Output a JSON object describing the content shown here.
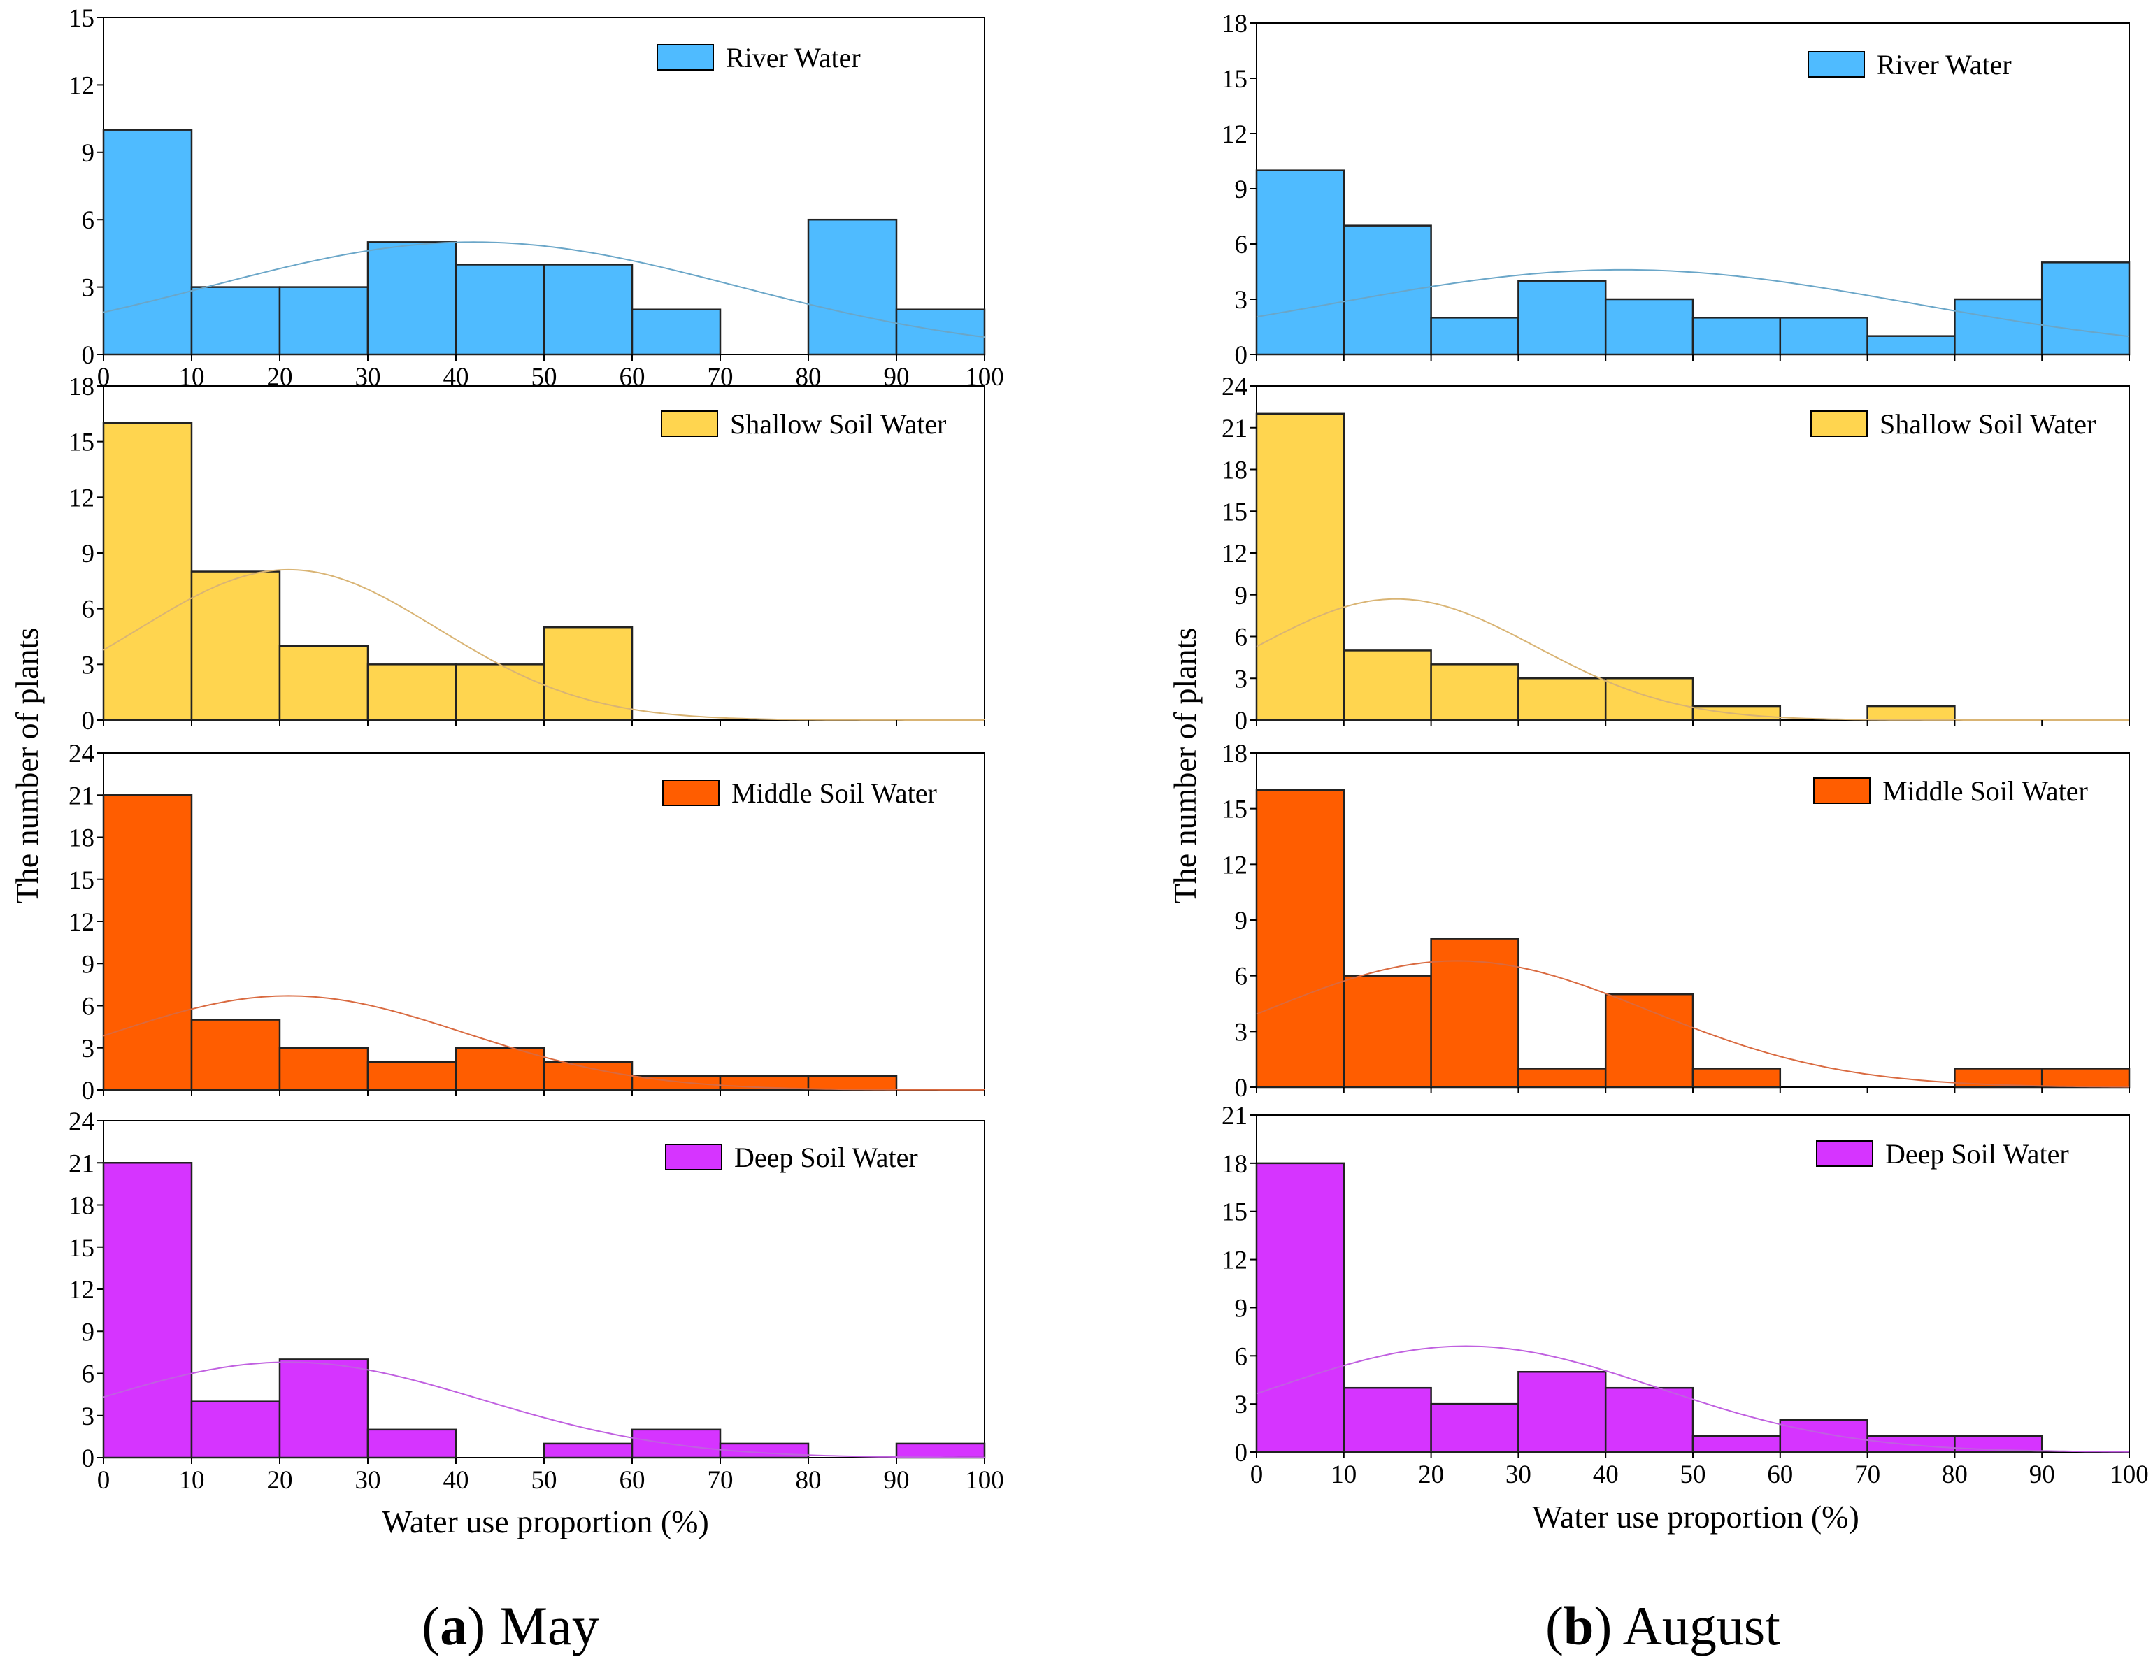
{
  "figure": {
    "captions": [
      {
        "open": "(",
        "letter": "a",
        "close": ")",
        "text": "May"
      },
      {
        "open": "(",
        "letter": "b",
        "close": ")",
        "text": "August"
      }
    ],
    "xlabel": "Water use proportion (%)",
    "ylabel": "The number of plants"
  },
  "colors": {
    "river": "#4FBBFF",
    "shallow": "#FFD54F",
    "middle": "#FF5D00",
    "deep": "#D634FF",
    "river_curve": "#6AA6C8",
    "shallow_curve": "#D9B474",
    "middle_curve": "#D96A40",
    "deep_curve": "#C060E0"
  },
  "chart_data": [
    {
      "type": "bar",
      "panel": "May",
      "source": "River Water",
      "legend": "River Water",
      "bin_edges": [
        0,
        10,
        20,
        30,
        40,
        50,
        60,
        70,
        80,
        90,
        100
      ],
      "values": [
        10,
        3,
        3,
        5,
        4,
        4,
        2,
        0,
        6,
        2
      ],
      "ylim": [
        0,
        15
      ],
      "yticks": [
        0,
        3,
        6,
        9,
        12,
        15
      ],
      "xticks": [
        0,
        10,
        20,
        30,
        40,
        50,
        60,
        70,
        80,
        90,
        100
      ],
      "normal_curve": {
        "mean": 42,
        "sd": 30,
        "peak": 5
      }
    },
    {
      "type": "bar",
      "panel": "May",
      "source": "Shallow Soil Water",
      "legend": "Shallow Soil Water",
      "bin_edges": [
        0,
        10,
        20,
        30,
        40,
        50,
        60,
        70,
        80,
        90,
        100
      ],
      "values": [
        16,
        8,
        4,
        3,
        3,
        5,
        0,
        0,
        0,
        0
      ],
      "ylim": [
        0,
        18
      ],
      "yticks": [
        0,
        3,
        6,
        9,
        12,
        15,
        18
      ],
      "normal_curve": {
        "mean": 21,
        "sd": 17,
        "peak": 8.1
      }
    },
    {
      "type": "bar",
      "panel": "May",
      "source": "Middle Soil Water",
      "legend": "Middle Soil Water",
      "bin_edges": [
        0,
        10,
        20,
        30,
        40,
        50,
        60,
        70,
        80,
        90,
        100
      ],
      "values": [
        21,
        5,
        3,
        2,
        3,
        2,
        1,
        1,
        1,
        0
      ],
      "ylim": [
        0,
        24
      ],
      "yticks": [
        0,
        3,
        6,
        9,
        12,
        15,
        18,
        21,
        24
      ],
      "normal_curve": {
        "mean": 21,
        "sd": 20,
        "peak": 6.7
      }
    },
    {
      "type": "bar",
      "panel": "May",
      "source": "Deep Soil Water",
      "legend": "Deep Soil Water",
      "bin_edges": [
        0,
        10,
        20,
        30,
        40,
        50,
        60,
        70,
        80,
        90,
        100
      ],
      "values": [
        21,
        4,
        7,
        2,
        0,
        1,
        2,
        1,
        0,
        1
      ],
      "ylim": [
        0,
        24
      ],
      "yticks": [
        0,
        3,
        6,
        9,
        12,
        15,
        18,
        21,
        24
      ],
      "xticks": [
        0,
        10,
        20,
        30,
        40,
        50,
        60,
        70,
        80,
        90,
        100
      ],
      "xlabel": "Water use proportion (%)",
      "normal_curve": {
        "mean": 21,
        "sd": 22,
        "peak": 6.8
      }
    },
    {
      "type": "bar",
      "panel": "August",
      "source": "River Water",
      "legend": "River Water",
      "bin_edges": [
        0,
        10,
        20,
        30,
        40,
        50,
        60,
        70,
        80,
        90,
        100
      ],
      "values": [
        10,
        7,
        2,
        4,
        3,
        2,
        2,
        1,
        3,
        5
      ],
      "ylim": [
        0,
        18
      ],
      "yticks": [
        0,
        3,
        6,
        9,
        12,
        15,
        18
      ],
      "normal_curve": {
        "mean": 42,
        "sd": 33,
        "peak": 4.6
      }
    },
    {
      "type": "bar",
      "panel": "August",
      "source": "Shallow Soil Water",
      "legend": "Shallow Soil Water",
      "bin_edges": [
        0,
        10,
        20,
        30,
        40,
        50,
        60,
        70,
        80,
        90,
        100
      ],
      "values": [
        22,
        5,
        4,
        3,
        3,
        1,
        0,
        1,
        0,
        0
      ],
      "ylim": [
        0,
        24
      ],
      "yticks": [
        0,
        3,
        6,
        9,
        12,
        15,
        18,
        21,
        24
      ],
      "normal_curve": {
        "mean": 16,
        "sd": 16,
        "peak": 8.7
      }
    },
    {
      "type": "bar",
      "panel": "August",
      "source": "Middle Soil Water",
      "legend": "Middle Soil Water",
      "bin_edges": [
        0,
        10,
        20,
        30,
        40,
        50,
        60,
        70,
        80,
        90,
        100
      ],
      "values": [
        16,
        6,
        8,
        1,
        5,
        1,
        0,
        0,
        1,
        1
      ],
      "ylim": [
        0,
        18
      ],
      "yticks": [
        0,
        3,
        6,
        9,
        12,
        15,
        18
      ],
      "normal_curve": {
        "mean": 23,
        "sd": 22,
        "peak": 6.8
      }
    },
    {
      "type": "bar",
      "panel": "August",
      "source": "Deep Soil Water",
      "legend": "Deep Soil Water",
      "bin_edges": [
        0,
        10,
        20,
        30,
        40,
        50,
        60,
        70,
        80,
        90,
        100
      ],
      "values": [
        18,
        4,
        3,
        5,
        4,
        1,
        2,
        1,
        1,
        0
      ],
      "ylim": [
        0,
        21
      ],
      "yticks": [
        0,
        3,
        6,
        9,
        12,
        15,
        18,
        21
      ],
      "xticks": [
        0,
        10,
        20,
        30,
        40,
        50,
        60,
        70,
        80,
        90,
        100
      ],
      "xlabel": "Water use proportion (%)",
      "normal_curve": {
        "mean": 24,
        "sd": 22,
        "peak": 6.6
      }
    }
  ]
}
